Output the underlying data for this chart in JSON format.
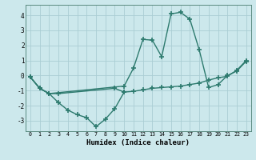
{
  "xlabel": "Humidex (Indice chaleur)",
  "bg_color": "#cce8ec",
  "line_color": "#2d7a6e",
  "grid_color": "#aacdd4",
  "xlim": [
    -0.5,
    23.5
  ],
  "ylim": [
    -3.7,
    4.7
  ],
  "xticks": [
    0,
    1,
    2,
    3,
    4,
    5,
    6,
    7,
    8,
    9,
    10,
    11,
    12,
    13,
    14,
    15,
    16,
    17,
    18,
    19,
    20,
    21,
    22,
    23
  ],
  "yticks": [
    -3,
    -2,
    -1,
    0,
    1,
    2,
    3,
    4
  ],
  "line1_x": [
    0,
    1,
    2,
    3,
    4,
    5,
    6,
    7,
    8,
    9,
    10
  ],
  "line1_y": [
    -0.1,
    -0.85,
    -1.2,
    -1.8,
    -2.3,
    -2.6,
    -2.8,
    -3.4,
    -2.9,
    -2.2,
    -1.1
  ],
  "line2_x": [
    0,
    1,
    2,
    3,
    9,
    10,
    11,
    12,
    13,
    14,
    15,
    16,
    17,
    18,
    19,
    20,
    21,
    22,
    23
  ],
  "line2_y": [
    -0.1,
    -0.85,
    -1.2,
    -1.2,
    -0.85,
    -1.1,
    -1.05,
    -0.95,
    -0.85,
    -0.8,
    -0.75,
    -0.7,
    -0.6,
    -0.5,
    -0.3,
    -0.15,
    -0.05,
    0.35,
    1.0
  ],
  "line3_x": [
    0,
    1,
    2,
    10,
    11,
    12,
    13,
    14,
    15,
    16,
    17,
    18,
    19,
    20,
    21,
    22,
    23
  ],
  "line3_y": [
    -0.1,
    -0.85,
    -1.2,
    -0.7,
    0.5,
    2.4,
    2.35,
    1.25,
    4.1,
    4.2,
    3.75,
    1.7,
    -0.8,
    -0.6,
    0.0,
    0.3,
    0.95
  ],
  "marker_size": 4,
  "line_width": 1.0
}
